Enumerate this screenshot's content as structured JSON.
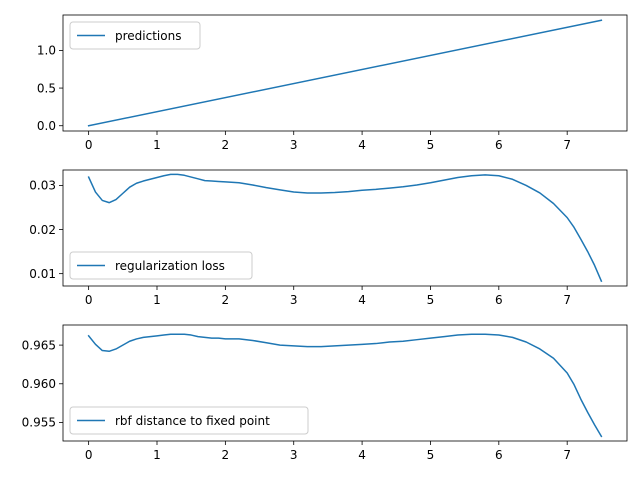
{
  "chart_data": [
    {
      "type": "line",
      "x_ticks": [
        0,
        1,
        2,
        3,
        4,
        5,
        6,
        7
      ],
      "y_ticks": [
        0.0,
        0.5,
        1.0
      ],
      "y_tick_labels": [
        "0.0",
        "0.5",
        "1.0"
      ],
      "xlim": [
        -0.375,
        7.875
      ],
      "ylim": [
        -0.07,
        1.47
      ],
      "legend": "top-left",
      "series": [
        {
          "name": "predictions",
          "color": "#1f77b4",
          "x": [
            0,
            7.5
          ],
          "y": [
            0.0,
            1.4
          ]
        }
      ]
    },
    {
      "type": "line",
      "x_ticks": [
        0,
        1,
        2,
        3,
        4,
        5,
        6,
        7
      ],
      "y_ticks": [
        0.01,
        0.02,
        0.03
      ],
      "y_tick_labels": [
        "0.01",
        "0.02",
        "0.03"
      ],
      "xlim": [
        -0.375,
        7.875
      ],
      "ylim": [
        0.0072,
        0.0335
      ],
      "legend": "bottom-left",
      "series": [
        {
          "name": "regularization loss",
          "color": "#1f77b4",
          "x": [
            0,
            0.1,
            0.2,
            0.3,
            0.4,
            0.5,
            0.6,
            0.7,
            0.8,
            0.9,
            1.0,
            1.1,
            1.2,
            1.3,
            1.4,
            1.5,
            1.6,
            1.7,
            1.8,
            1.9,
            2.0,
            2.2,
            2.4,
            2.6,
            2.8,
            3.0,
            3.2,
            3.4,
            3.6,
            3.8,
            4.0,
            4.2,
            4.4,
            4.6,
            4.8,
            5.0,
            5.2,
            5.4,
            5.6,
            5.8,
            6.0,
            6.2,
            6.4,
            6.6,
            6.8,
            7.0,
            7.1,
            7.2,
            7.3,
            7.4,
            7.5
          ],
          "y": [
            0.0319,
            0.0285,
            0.0266,
            0.0261,
            0.0268,
            0.0282,
            0.0296,
            0.0305,
            0.031,
            0.0314,
            0.0318,
            0.0322,
            0.0325,
            0.0325,
            0.0323,
            0.0319,
            0.0315,
            0.0311,
            0.031,
            0.0309,
            0.0308,
            0.0306,
            0.0301,
            0.0295,
            0.029,
            0.0285,
            0.0283,
            0.0283,
            0.0284,
            0.0286,
            0.0289,
            0.0291,
            0.0294,
            0.0297,
            0.0301,
            0.0306,
            0.0312,
            0.0318,
            0.0322,
            0.0324,
            0.0322,
            0.0314,
            0.03,
            0.0283,
            0.0259,
            0.0227,
            0.0205,
            0.0178,
            0.015,
            0.0119,
            0.0083
          ]
        }
      ]
    },
    {
      "type": "line",
      "x_ticks": [
        0,
        1,
        2,
        3,
        4,
        5,
        6,
        7
      ],
      "y_ticks": [
        0.955,
        0.96,
        0.965
      ],
      "y_tick_labels": [
        "0.955",
        "0.960",
        "0.965"
      ],
      "xlim": [
        -0.375,
        7.875
      ],
      "ylim": [
        0.9526,
        0.9676
      ],
      "legend": "bottom-left",
      "series": [
        {
          "name": "rbf distance to fixed point",
          "color": "#1f77b4",
          "x": [
            0,
            0.1,
            0.2,
            0.3,
            0.4,
            0.5,
            0.6,
            0.7,
            0.8,
            0.9,
            1.0,
            1.1,
            1.2,
            1.3,
            1.4,
            1.5,
            1.6,
            1.7,
            1.8,
            1.9,
            2.0,
            2.2,
            2.4,
            2.6,
            2.8,
            3.0,
            3.2,
            3.4,
            3.6,
            3.8,
            4.0,
            4.2,
            4.4,
            4.6,
            4.8,
            5.0,
            5.2,
            5.4,
            5.6,
            5.8,
            6.0,
            6.2,
            6.4,
            6.6,
            6.8,
            7.0,
            7.1,
            7.2,
            7.3,
            7.4,
            7.5
          ],
          "y": [
            0.9662,
            0.9651,
            0.9643,
            0.9642,
            0.9645,
            0.965,
            0.9655,
            0.9658,
            0.966,
            0.9661,
            0.9662,
            0.9663,
            0.9664,
            0.9664,
            0.9664,
            0.9663,
            0.9661,
            0.966,
            0.9659,
            0.9659,
            0.9658,
            0.9658,
            0.9656,
            0.9653,
            0.965,
            0.9649,
            0.9648,
            0.9648,
            0.9649,
            0.965,
            0.9651,
            0.9652,
            0.9654,
            0.9655,
            0.9657,
            0.9659,
            0.9661,
            0.9663,
            0.9664,
            0.9664,
            0.9663,
            0.966,
            0.9654,
            0.9645,
            0.9633,
            0.9614,
            0.9599,
            0.958,
            0.9563,
            0.9547,
            0.9532
          ]
        }
      ]
    }
  ]
}
